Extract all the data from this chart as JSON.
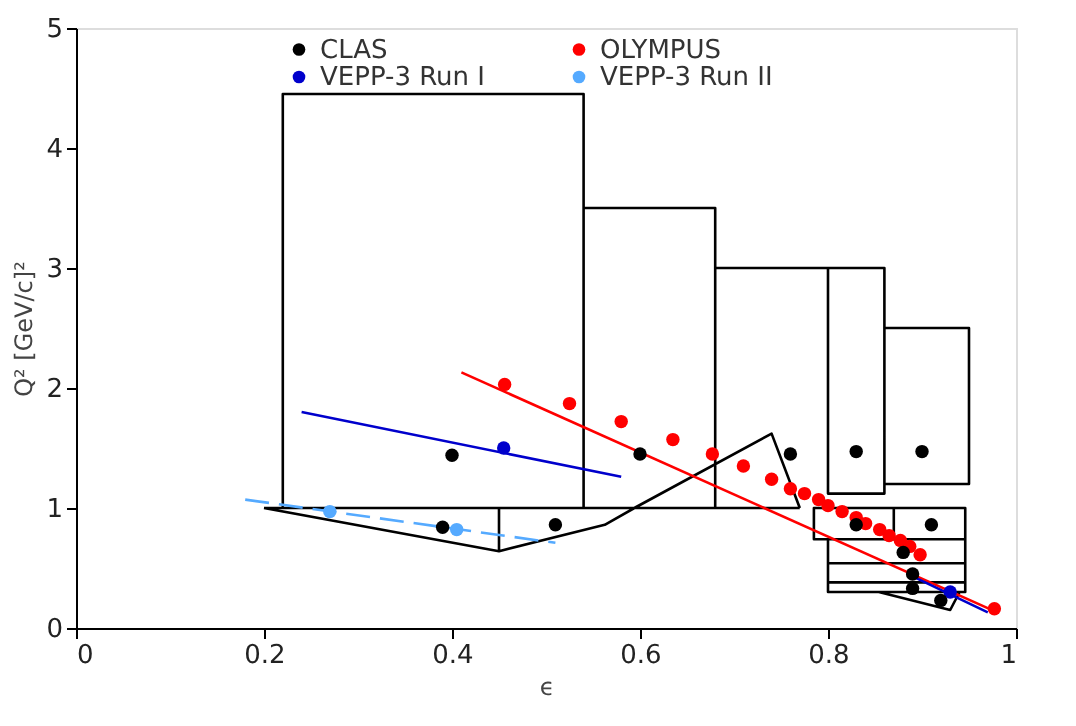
{
  "chart_data": {
    "type": "scatter",
    "xlabel": "ϵ",
    "ylabel": "Q² [GeV/c]²",
    "xlim": [
      0,
      1
    ],
    "ylim": [
      0,
      5
    ],
    "xticks": [
      0,
      0.2,
      0.4,
      0.6,
      0.8,
      1
    ],
    "yticks": [
      0,
      1,
      2,
      3,
      4,
      5
    ],
    "grid": false,
    "legend": "top",
    "marker": "circle",
    "series": [
      {
        "type": "line",
        "color": "#000000",
        "marker": "none",
        "x": [
          0.2,
          0.77,
          null,
          0.22,
          0.22,
          0.54,
          0.54,
          null,
          0.54,
          0.68,
          0.68,
          null,
          0.68,
          0.86,
          0.86,
          0.8,
          0.8,
          null,
          0.86,
          0.95,
          0.95,
          0.86,
          null,
          0.87,
          0.785,
          0.785,
          0.87,
          0.87,
          0.946,
          0.946,
          0.87,
          null,
          0.8,
          0.8,
          0.946,
          0.946,
          null,
          0.8,
          0.8,
          0.946,
          0.946,
          null,
          0.8,
          0.8,
          0.946,
          0.946,
          null,
          0.2,
          0.45,
          0.5625,
          0.594,
          0.74,
          0.77,
          null,
          0.45,
          0.45,
          null,
          0.854,
          0.93,
          0.94
        ],
        "values": [
          1.0,
          1.0,
          null,
          1.0,
          4.45,
          4.45,
          1.0,
          null,
          3.5,
          3.5,
          1.0,
          null,
          3.0,
          3.0,
          1.12,
          1.12,
          3.0,
          null,
          2.5,
          2.5,
          1.2,
          1.2,
          null,
          1.0,
          1.0,
          0.74,
          0.74,
          1.0,
          1.0,
          0.74,
          0.74,
          null,
          0.74,
          0.54,
          0.54,
          0.74,
          null,
          0.54,
          0.38,
          0.38,
          0.54,
          null,
          0.38,
          0.3,
          0.3,
          0.38,
          null,
          1.0,
          0.64,
          0.86,
          1.0,
          1.62,
          1.0,
          null,
          0.64,
          1.0,
          null,
          0.3,
          0.15,
          0.3
        ]
      },
      {
        "type": "line",
        "color": "#ff0000",
        "marker": "none",
        "x": [
          0.41,
          0.98
        ],
        "values": [
          2.13,
          0.13
        ]
      },
      {
        "type": "line",
        "color": "#0000cc",
        "marker": "none",
        "x": [
          0.24,
          0.58,
          null,
          0.89,
          0.97
        ],
        "values": [
          1.8,
          1.26,
          null,
          0.43,
          0.13
        ]
      },
      {
        "type": "line",
        "color": "#55aaff",
        "marker": "none",
        "line_style": "dashed",
        "x": [
          0.18,
          0.51
        ],
        "values": [
          1.07,
          0.71
        ]
      },
      {
        "name": "CLAS",
        "color": "#000000",
        "x": [
          0.4,
          0.39,
          0.51,
          0.6,
          0.76,
          0.83,
          0.9,
          0.83,
          0.91,
          0.88,
          0.89,
          0.89,
          0.92
        ],
        "values": [
          1.44,
          0.84,
          0.86,
          1.45,
          1.45,
          1.47,
          1.47,
          0.86,
          0.86,
          0.63,
          0.45,
          0.33,
          0.23
        ]
      },
      {
        "name": "OLYMPUS",
        "color": "#ff0000",
        "x": [
          0.456,
          0.525,
          0.58,
          0.635,
          0.677,
          0.71,
          0.74,
          0.76,
          0.775,
          0.79,
          0.8,
          0.815,
          0.83,
          0.84,
          0.855,
          0.865,
          0.877,
          0.887,
          0.898,
          0.977
        ],
        "values": [
          2.03,
          1.87,
          1.72,
          1.57,
          1.45,
          1.35,
          1.24,
          1.16,
          1.12,
          1.07,
          1.02,
          0.97,
          0.92,
          0.87,
          0.82,
          0.77,
          0.73,
          0.68,
          0.61,
          0.16
        ]
      },
      {
        "name": "VEPP-3 Run I",
        "color": "#0000cc",
        "x": [
          0.455,
          0.93
        ],
        "values": [
          1.5,
          0.3
        ]
      },
      {
        "name": "VEPP-3 Run II",
        "color": "#55aaff",
        "x": [
          0.27,
          0.405
        ],
        "values": [
          0.97,
          0.82
        ]
      }
    ]
  }
}
